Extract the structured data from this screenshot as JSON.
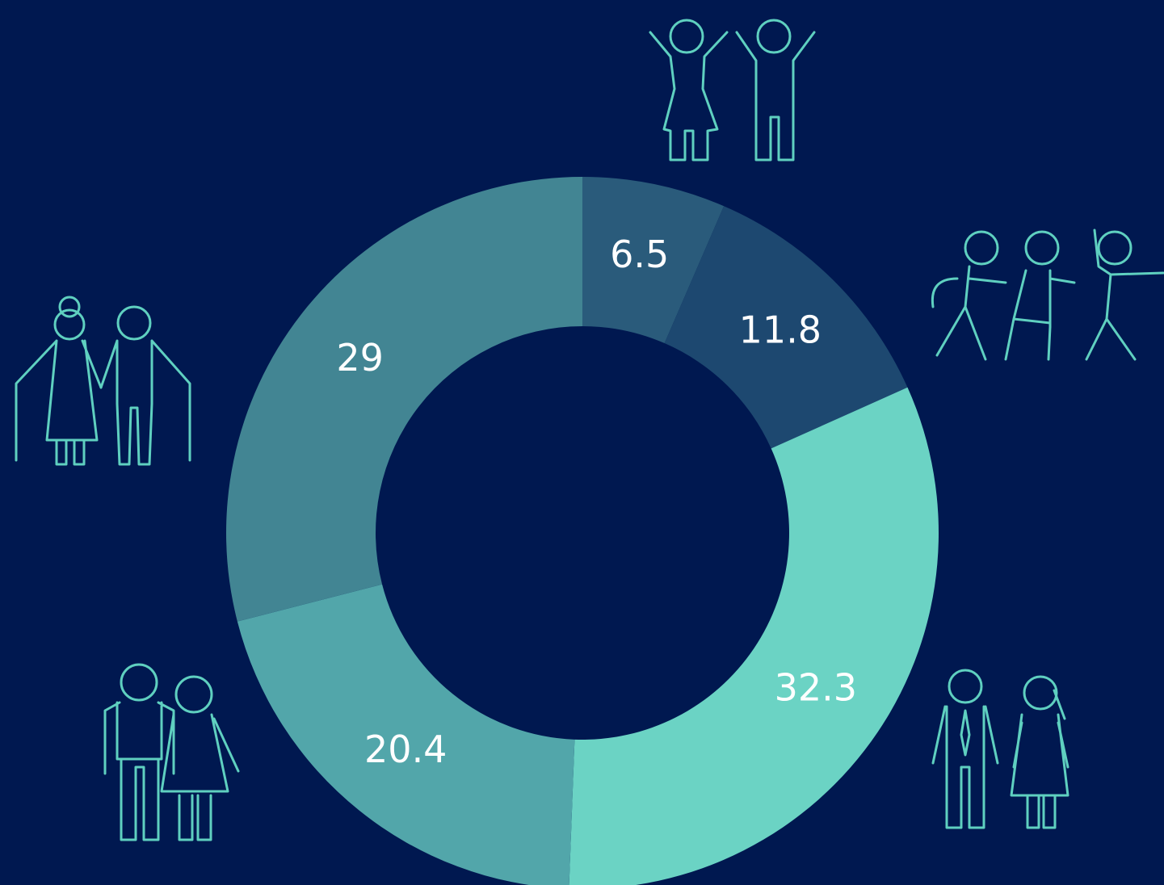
{
  "chart_data": {
    "type": "donut",
    "values": [
      6.5,
      11.8,
      32.3,
      20.4,
      29
    ],
    "colors": [
      "#2a5b7b",
      "#1d4870",
      "#6bd3c4",
      "#52a6aa",
      "#428593"
    ]
  }
}
